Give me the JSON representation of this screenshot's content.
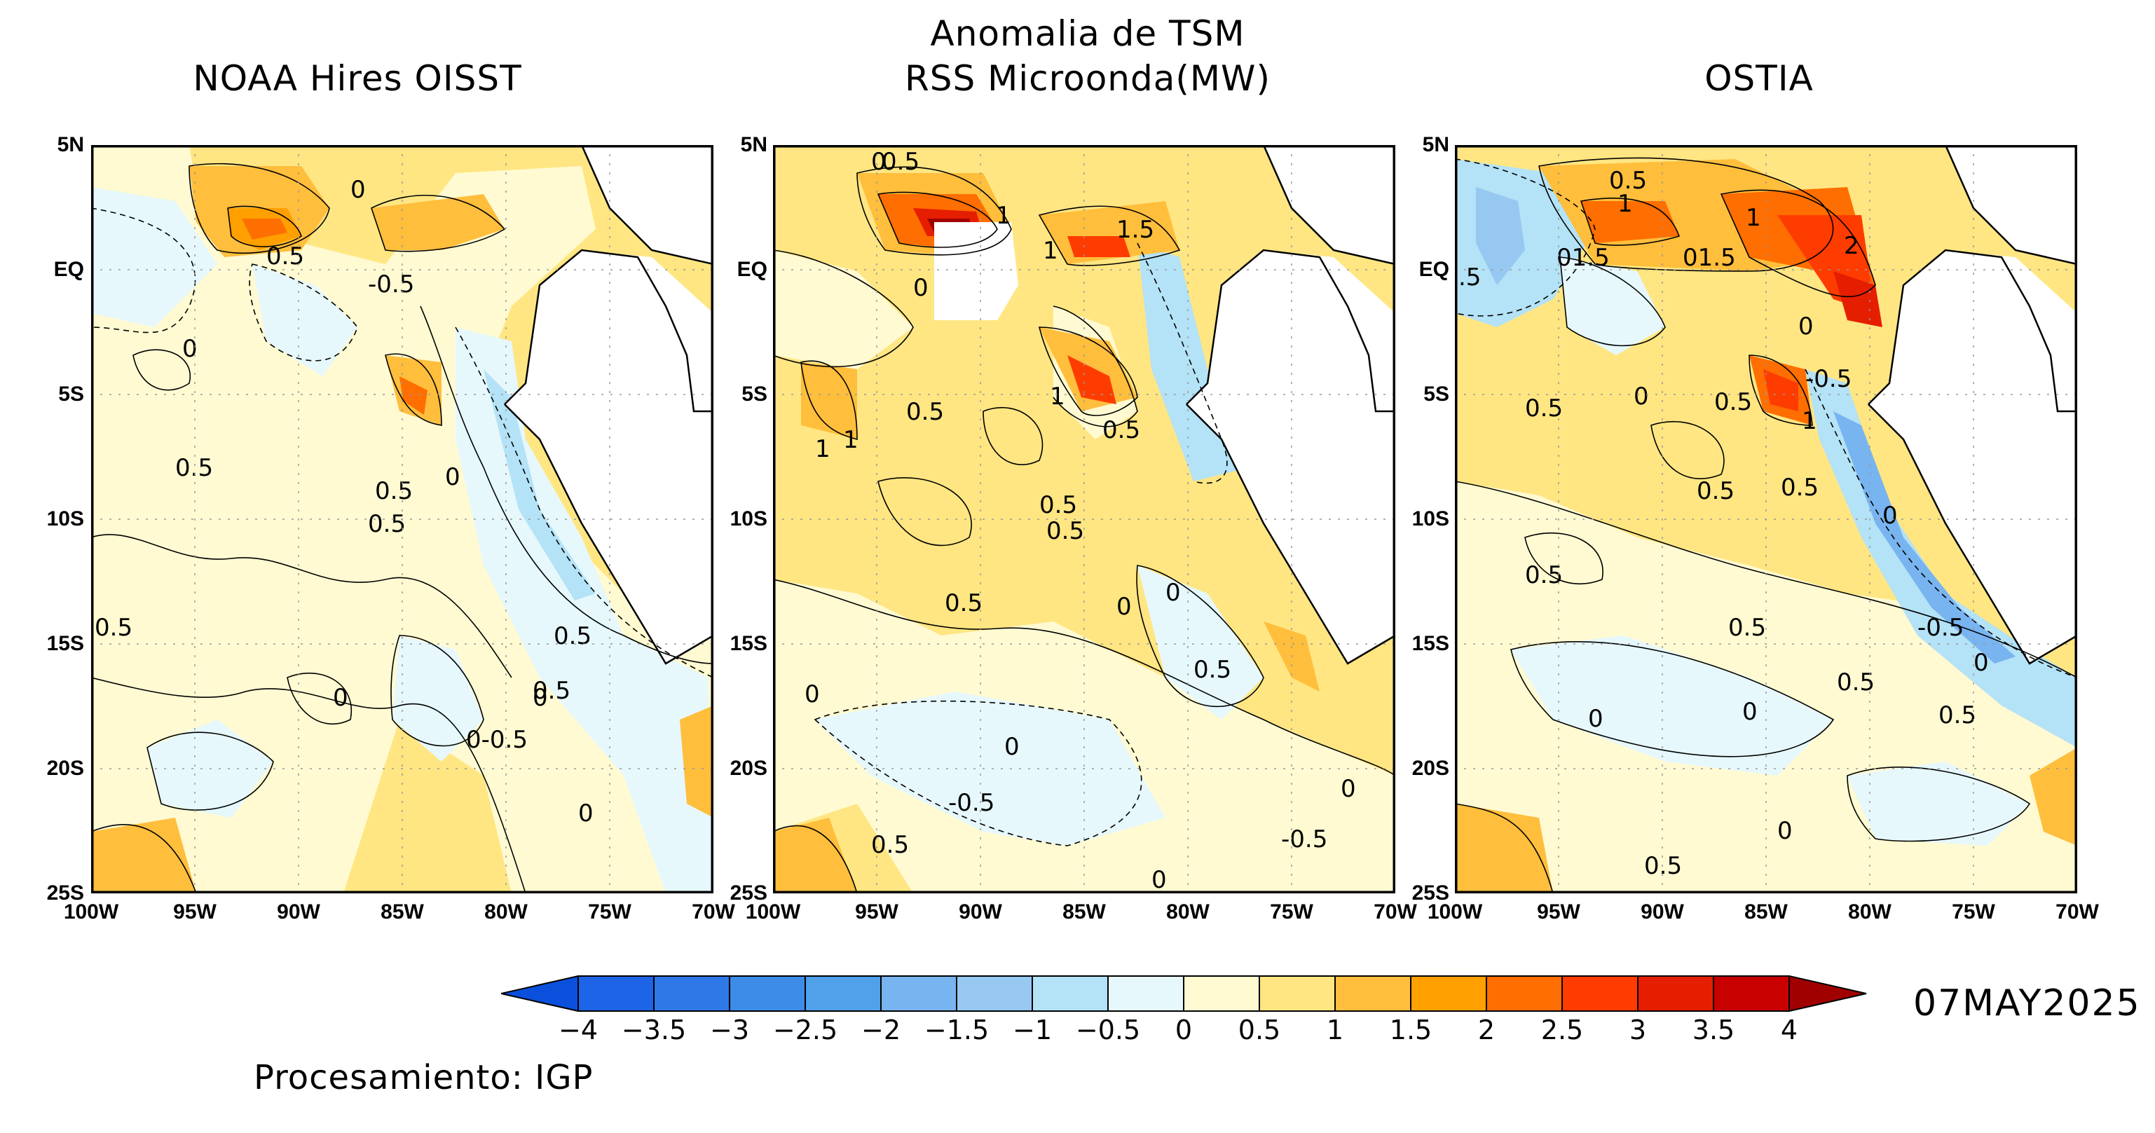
{
  "header": {
    "main_title_line1": "Anomalia de TSM"
  },
  "panels": [
    {
      "id": "oisst",
      "title": "NOAA Hires OISST",
      "contour_labels": [
        "0.5",
        "0",
        "-0.5",
        "0",
        "0.5",
        "0.5",
        "0",
        "0.5",
        "0.5",
        "0.5",
        "0.5",
        "0",
        "0",
        "0-0.5",
        "0",
        "0.5"
      ]
    },
    {
      "id": "rss",
      "title": "RSS Microonda(MW)",
      "contour_labels": [
        "0.5",
        "0",
        "1",
        "1",
        "1.5",
        "0",
        "0.5",
        "1",
        "1",
        "1",
        "0.5",
        "0.5",
        "0.5",
        "0.5",
        "0",
        "0",
        "0.5",
        "0",
        "0",
        "-0.5",
        "0",
        "-0.5",
        "0.5",
        "0"
      ]
    },
    {
      "id": "ostia",
      "title": "OSTIA",
      "contour_labels": [
        "0.5",
        "1",
        "1",
        "01.5",
        "01.5",
        "2",
        ".5",
        "0",
        "-0.5",
        "0.5",
        "0",
        "0.5",
        "1",
        "0.5",
        "0.5",
        "0",
        "0.5",
        "0.5",
        "-0.5",
        "0.5",
        "0.5",
        "0",
        "0",
        "0",
        "0",
        "0.5"
      ]
    }
  ],
  "axes": {
    "lat_ticks": [
      "5N",
      "EQ",
      "5S",
      "10S",
      "15S",
      "20S",
      "25S"
    ],
    "lon_ticks": [
      "100W",
      "95W",
      "90W",
      "85W",
      "80W",
      "75W",
      "70W"
    ],
    "lat_range": [
      -25,
      5
    ],
    "lon_range": [
      -100,
      -70
    ],
    "grid": "dotted"
  },
  "colorbar": {
    "labels": [
      "−4",
      "−3.5",
      "−3",
      "−2.5",
      "−2",
      "−1.5",
      "−1",
      "−0.5",
      "0",
      "0.5",
      "1",
      "1.5",
      "2",
      "2.5",
      "3",
      "3.5",
      "4"
    ],
    "colors": [
      "#1e64e6",
      "#2f78e8",
      "#3c8ce8",
      "#50a0ea",
      "#78b4f0",
      "#96c8f2",
      "#b4e2f6",
      "#e6f8fc",
      "#fffad2",
      "#ffe682",
      "#ffbe3c",
      "#ffa000",
      "#ff6e00",
      "#ff3c00",
      "#e61e00",
      "#c80000"
    ],
    "under_color": "#0a50dc",
    "over_color": "#a00000"
  },
  "footer": {
    "date": "07MAY2025",
    "credit": "Procesamiento: IGP"
  }
}
